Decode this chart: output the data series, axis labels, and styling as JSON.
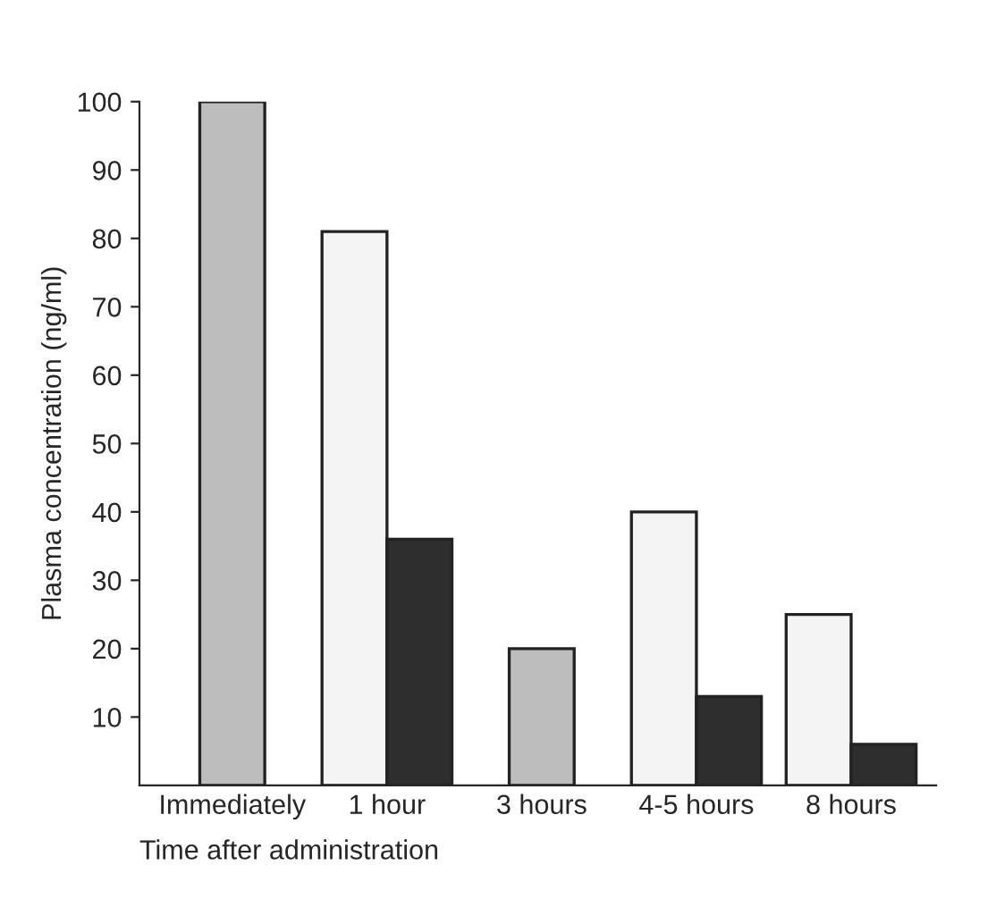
{
  "chart_data": {
    "type": "bar",
    "xlabel": "Time after administration",
    "ylabel": "Plasma concentration (ng/ml)",
    "categories": [
      "Immediately",
      "1 hour",
      "3 hours",
      "4-5 hours",
      "8 hours"
    ],
    "series": [
      {
        "color": "#bdbdbd",
        "values": [
          100,
          null,
          20,
          null,
          null
        ]
      },
      {
        "color": "#f4f4f4",
        "values": [
          null,
          81,
          null,
          40,
          25
        ]
      },
      {
        "color": "#2e2e2e",
        "values": [
          null,
          36,
          null,
          13,
          6
        ]
      }
    ],
    "ylim": [
      0,
      100
    ],
    "yticks": [
      10,
      20,
      30,
      40,
      50,
      60,
      70,
      80,
      90,
      100
    ],
    "grid": false,
    "legend": false
  }
}
